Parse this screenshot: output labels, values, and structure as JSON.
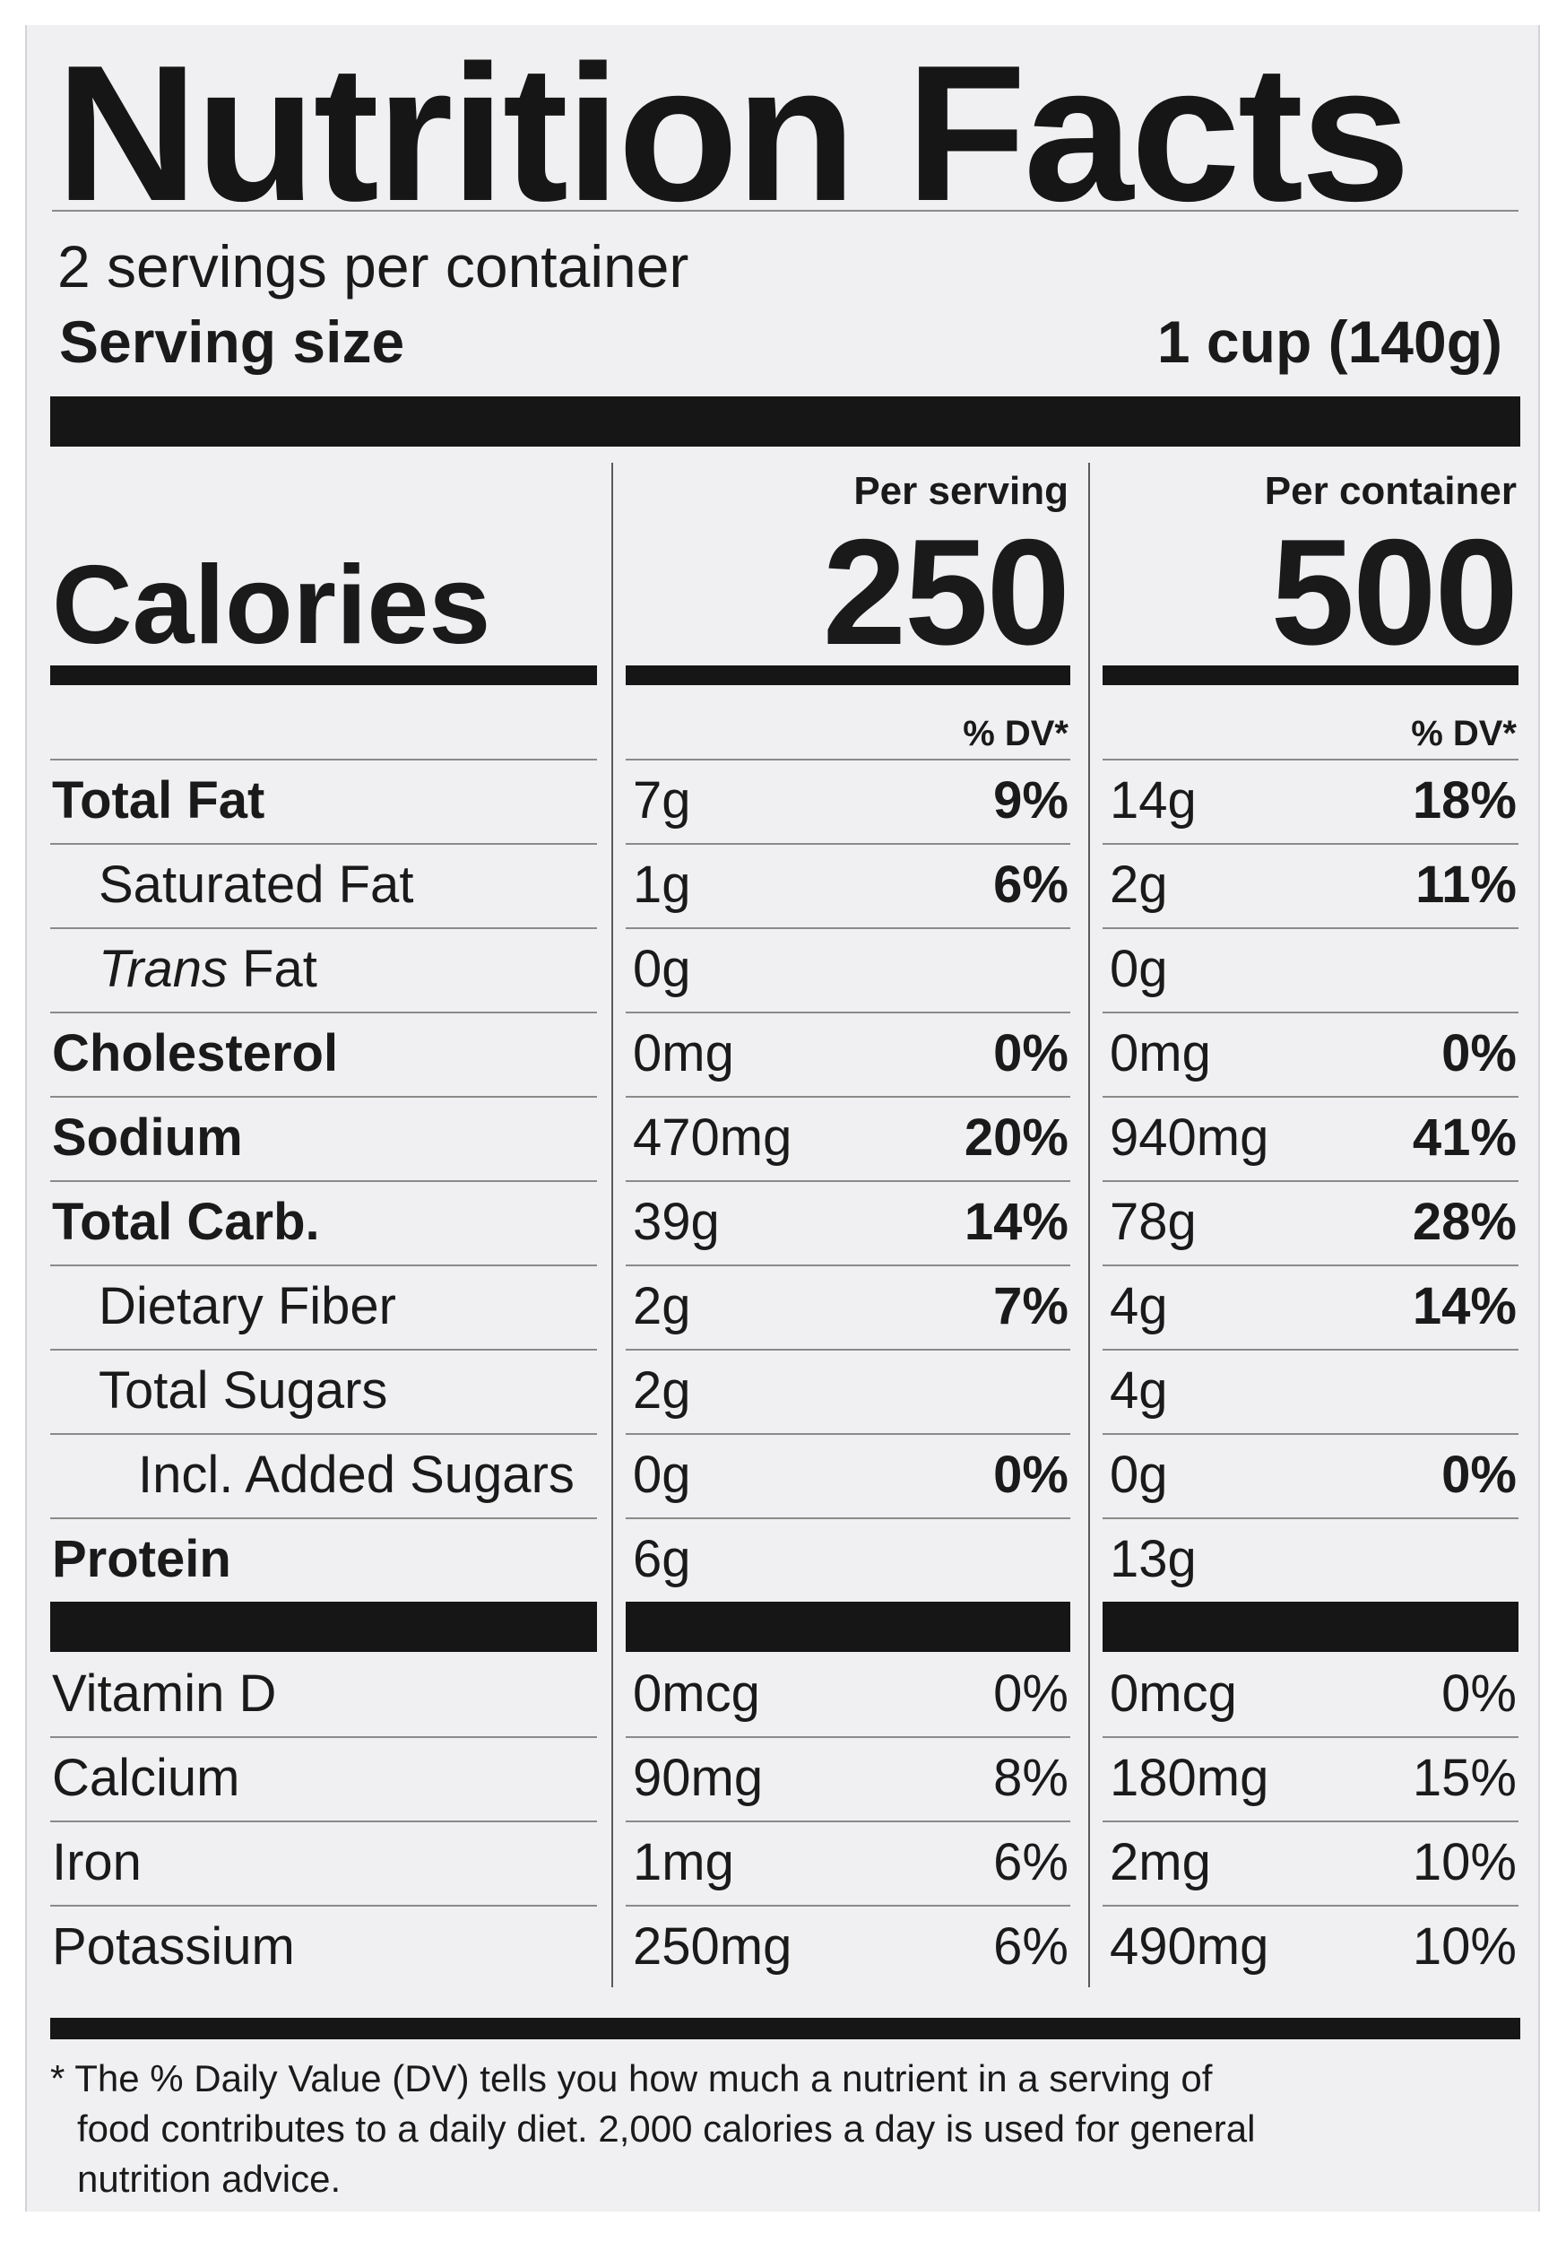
{
  "title": "Nutrition Facts",
  "servings_per_container": "2 servings per container",
  "serving_size_label": "Serving size",
  "serving_size_value": "1 cup (140g)",
  "calories_label": "Calories",
  "per_serving_label": "Per serving",
  "per_container_label": "Per container",
  "calories_per_serving": "250",
  "calories_per_container": "500",
  "dv_header": "% DV*",
  "nutrients": [
    {
      "label": "Total Fat",
      "bold": true,
      "indent": 0,
      "serv_amt": "7g",
      "serv_dv": "9%",
      "cont_amt": "14g",
      "cont_dv": "18%",
      "dv_bold": true
    },
    {
      "label": "Saturated Fat",
      "bold": false,
      "indent": 1,
      "serv_amt": "1g",
      "serv_dv": "6%",
      "cont_amt": "2g",
      "cont_dv": "11%",
      "dv_bold": true
    },
    {
      "label_italic": "Trans",
      "label": "Fat",
      "bold": false,
      "indent": 1,
      "serv_amt": "0g",
      "serv_dv": "",
      "cont_amt": "0g",
      "cont_dv": "",
      "dv_bold": true
    },
    {
      "label": "Cholesterol",
      "bold": true,
      "indent": 0,
      "serv_amt": "0mg",
      "serv_dv": "0%",
      "cont_amt": "0mg",
      "cont_dv": "0%",
      "dv_bold": true
    },
    {
      "label": "Sodium",
      "bold": true,
      "indent": 0,
      "serv_amt": "470mg",
      "serv_dv": "20%",
      "cont_amt": "940mg",
      "cont_dv": "41%",
      "dv_bold": true
    },
    {
      "label": "Total Carb.",
      "bold": true,
      "indent": 0,
      "serv_amt": "39g",
      "serv_dv": "14%",
      "cont_amt": "78g",
      "cont_dv": "28%",
      "dv_bold": true
    },
    {
      "label": "Dietary Fiber",
      "bold": false,
      "indent": 1,
      "serv_amt": "2g",
      "serv_dv": "7%",
      "cont_amt": "4g",
      "cont_dv": "14%",
      "dv_bold": true
    },
    {
      "label": "Total Sugars",
      "bold": false,
      "indent": 1,
      "serv_amt": "2g",
      "serv_dv": "",
      "cont_amt": "4g",
      "cont_dv": "",
      "dv_bold": true
    },
    {
      "label": "Incl. Added Sugars",
      "bold": false,
      "indent": 2,
      "serv_amt": "0g",
      "serv_dv": "0%",
      "cont_amt": "0g",
      "cont_dv": "0%",
      "dv_bold": true
    },
    {
      "label": "Protein",
      "bold": true,
      "indent": 0,
      "serv_amt": "6g",
      "serv_dv": "",
      "cont_amt": "13g",
      "cont_dv": "",
      "dv_bold": true
    }
  ],
  "vitamins": [
    {
      "label": "Vitamin D",
      "serv_amt": "0mcg",
      "serv_dv": "0%",
      "cont_amt": "0mcg",
      "cont_dv": "0%"
    },
    {
      "label": "Calcium",
      "serv_amt": "90mg",
      "serv_dv": "8%",
      "cont_amt": "180mg",
      "cont_dv": "15%"
    },
    {
      "label": "Iron",
      "serv_amt": "1mg",
      "serv_dv": "6%",
      "cont_amt": "2mg",
      "cont_dv": "10%"
    },
    {
      "label": "Potassium",
      "serv_amt": "250mg",
      "serv_dv": "6%",
      "cont_amt": "490mg",
      "cont_dv": "10%"
    }
  ],
  "footnote": [
    "* The % Daily Value (DV) tells you how much a nutrient in a serving of",
    "food contributes to a daily diet. 2,000 calories a day is used for general",
    "nutrition advice."
  ]
}
